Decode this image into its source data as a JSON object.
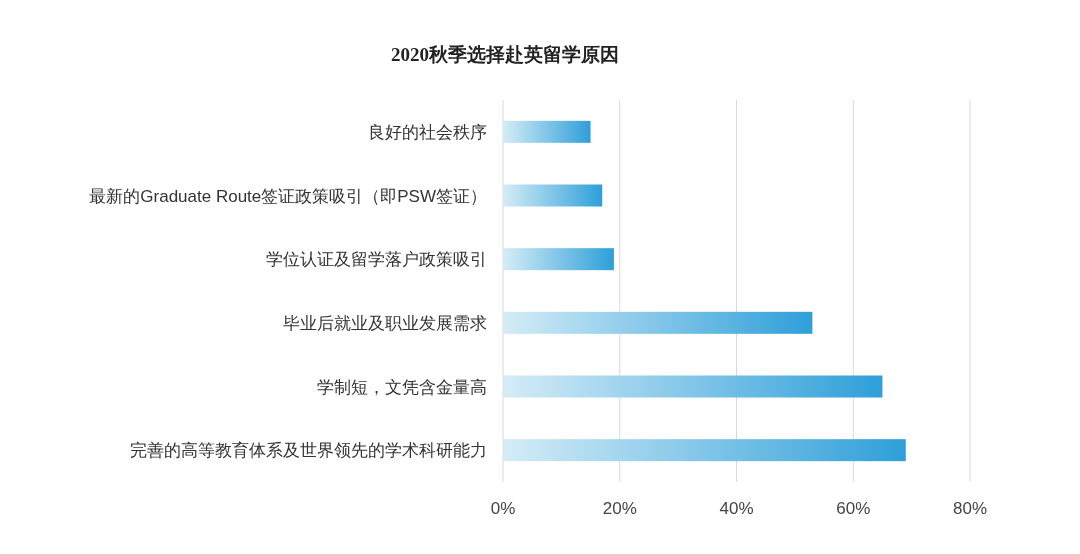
{
  "chart_data": {
    "type": "bar",
    "title": "2020秋季选择赴英留学原因",
    "orientation": "horizontal",
    "categories": [
      "良好的社会秩序",
      "最新的Graduate Route签证政策吸引（即PSW签证）",
      "学位认证及留学落户政策吸引",
      "毕业后就业及职业发展需求",
      "学制短，文凭含金量高",
      "完善的高等教育体系及世界领先的学术科研能力"
    ],
    "values": [
      15,
      17,
      19,
      53,
      65,
      69
    ],
    "color": "#2e9fd9",
    "xlim": [
      0,
      80
    ],
    "xticks": [
      {
        "value": 0,
        "label": "0%"
      },
      {
        "value": 20,
        "label": "20%"
      },
      {
        "value": 40,
        "label": "40%"
      },
      {
        "value": 60,
        "label": "60%"
      },
      {
        "value": 80,
        "label": "80%"
      }
    ],
    "grid": "x"
  }
}
